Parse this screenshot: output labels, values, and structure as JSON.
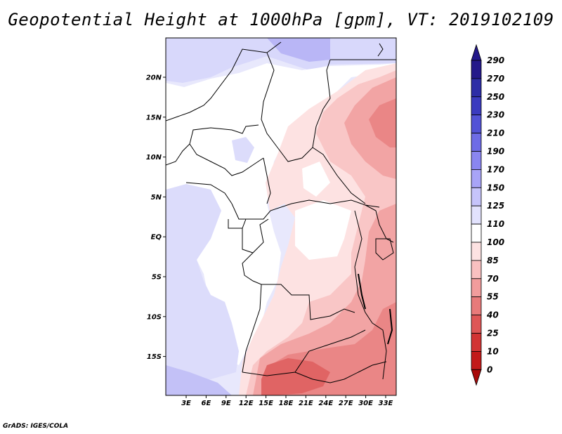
{
  "title": "Geopotential Height at 1000hPa [gpm], VT: 2019102109",
  "footer": "GrADS: IGES/COLA",
  "map": {
    "lat_ticks": [
      "20N",
      "15N",
      "10N",
      "5N",
      "EQ",
      "5S",
      "10S",
      "15S"
    ],
    "lon_ticks": [
      "3E",
      "6E",
      "9E",
      "12E",
      "15E",
      "18E",
      "21E",
      "24E",
      "27E",
      "30E",
      "33E"
    ]
  },
  "colorbar": {
    "levels": [
      "290",
      "270",
      "250",
      "230",
      "210",
      "190",
      "170",
      "150",
      "125",
      "110",
      "100",
      "85",
      "70",
      "55",
      "40",
      "25",
      "10",
      "0"
    ],
    "colors": [
      "#24198a",
      "#2d2da6",
      "#3b3bbf",
      "#5353d6",
      "#6e6ce6",
      "#8a86f0",
      "#a8a4f7",
      "#c6c4fb",
      "#e2e2fd",
      "#ffffff",
      "#fde2e2",
      "#f9c0c0",
      "#f19c9c",
      "#e87a7a",
      "#de5656",
      "#d23434",
      "#c21a1a",
      "#a80a0a"
    ]
  }
}
